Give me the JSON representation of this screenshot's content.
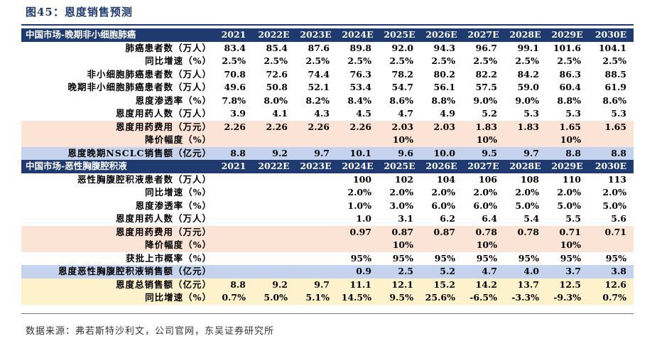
{
  "title": "图45：恩度销售预测",
  "source": "数据来源：弗若斯特沙利文，公司官网，东吴证券研究所",
  "sections": [
    {
      "header": "中国市场-晚期非小细胞肺癌",
      "years": [
        "2021",
        "2022E",
        "2023E",
        "2024E",
        "2025E",
        "2026E",
        "2027E",
        "2028E",
        "2029E",
        "2030E"
      ],
      "rows": [
        {
          "label": "肺癌患者数（万人）",
          "style": "white",
          "values": [
            "83.4",
            "85.4",
            "87.6",
            "89.8",
            "92.0",
            "94.3",
            "96.7",
            "99.1",
            "101.6",
            "104.1"
          ]
        },
        {
          "label": "同比增速（%）",
          "style": "white",
          "values": [
            "2.5%",
            "2.5%",
            "2.5%",
            "2.5%",
            "2.5%",
            "2.5%",
            "2.5%",
            "2.5%",
            "2.5%",
            "2.5%"
          ]
        },
        {
          "label": "非小细胞肺癌患者数（万人）",
          "style": "white",
          "values": [
            "70.8",
            "72.6",
            "74.4",
            "76.3",
            "78.2",
            "80.2",
            "82.2",
            "84.2",
            "86.3",
            "88.5"
          ]
        },
        {
          "label": "晚期非小细胞肺癌患者数（万人）",
          "style": "white",
          "values": [
            "49.6",
            "50.8",
            "52.1",
            "53.4",
            "54.7",
            "56.1",
            "57.5",
            "59.0",
            "60.4",
            "61.9"
          ]
        },
        {
          "label": "恩度渗透率（%）",
          "style": "white",
          "values": [
            "7.8%",
            "8.0%",
            "8.2%",
            "8.4%",
            "8.6%",
            "8.8%",
            "9.0%",
            "9.0%",
            "8.8%",
            "8.6%"
          ]
        },
        {
          "label": "恩度用药人数（万人）",
          "style": "white",
          "values": [
            "3.9",
            "4.1",
            "4.3",
            "4.5",
            "4.7",
            "4.9",
            "5.2",
            "5.3",
            "5.3",
            "5.3"
          ]
        },
        {
          "label": "恩度用药费用（万元）",
          "style": "pink",
          "values": [
            "2.26",
            "2.26",
            "2.26",
            "2.26",
            "2.03",
            "2.03",
            "1.83",
            "1.83",
            "1.65",
            "1.65"
          ]
        },
        {
          "label": "降价幅度（%）",
          "style": "pink",
          "values": [
            "",
            "",
            "",
            "",
            "10%",
            "",
            "10%",
            "",
            "10%",
            ""
          ]
        },
        {
          "label": "恩度晚期NSCLC销售额（亿元）",
          "style": "blue",
          "values": [
            "8.8",
            "9.2",
            "9.7",
            "10.1",
            "9.6",
            "10.0",
            "9.5",
            "9.7",
            "8.8",
            "8.8"
          ]
        }
      ]
    },
    {
      "header": "中国市场-恶性胸腹腔积液",
      "years": [
        "2021",
        "2022E",
        "2023E",
        "2024E",
        "2025E",
        "2026E",
        "2027E",
        "2028E",
        "2029E",
        "2030E"
      ],
      "rows": [
        {
          "label": "恶性胸腹腔积液患者数（万人）",
          "style": "white",
          "values": [
            "",
            "",
            "",
            "100",
            "102",
            "104",
            "106",
            "108",
            "110",
            "113"
          ]
        },
        {
          "label": "同比增速（%）",
          "style": "white",
          "values": [
            "",
            "",
            "",
            "2.0%",
            "2.0%",
            "2.0%",
            "2.0%",
            "2.0%",
            "2.0%",
            "2.0%"
          ]
        },
        {
          "label": "恩度渗透率（%）",
          "style": "white",
          "values": [
            "",
            "",
            "",
            "1.0%",
            "3.0%",
            "6.0%",
            "6.0%",
            "5.0%",
            "5.0%",
            "5.0%"
          ]
        },
        {
          "label": "恩度用药人数（万人）",
          "style": "white",
          "values": [
            "",
            "",
            "",
            "1.0",
            "3.1",
            "6.2",
            "6.4",
            "5.4",
            "5.5",
            "5.6"
          ]
        },
        {
          "label": "恩度用药费用（万元）",
          "style": "pink",
          "values": [
            "",
            "",
            "",
            "0.97",
            "0.87",
            "0.87",
            "0.78",
            "0.78",
            "0.71",
            "0.71"
          ]
        },
        {
          "label": "降价幅度（%）",
          "style": "pink",
          "values": [
            "",
            "",
            "",
            "",
            "10%",
            "",
            "10%",
            "",
            "10%",
            ""
          ]
        },
        {
          "label": "获批上市概率（%）",
          "style": "white",
          "values": [
            "",
            "",
            "",
            "95%",
            "95%",
            "95%",
            "95%",
            "95%",
            "95%",
            "95%"
          ]
        },
        {
          "label": "恩度恶性胸腹腔积液销售额（亿元）",
          "style": "blue",
          "values": [
            "",
            "",
            "",
            "0.9",
            "2.5",
            "5.2",
            "4.7",
            "4.0",
            "3.7",
            "3.8"
          ]
        },
        {
          "label": "恩度总销售额（亿元）",
          "style": "yellow",
          "values": [
            "8.8",
            "9.2",
            "9.7",
            "11.1",
            "12.1",
            "15.2",
            "14.2",
            "13.7",
            "12.5",
            "12.6"
          ]
        },
        {
          "label": "同比增速（%）",
          "style": "yellow",
          "values": [
            "0.7%",
            "5.0%",
            "5.1%",
            "14.5%",
            "9.5%",
            "25.6%",
            "-6.5%",
            "-3.3%",
            "-9.3%",
            "0.7%"
          ]
        }
      ]
    }
  ]
}
